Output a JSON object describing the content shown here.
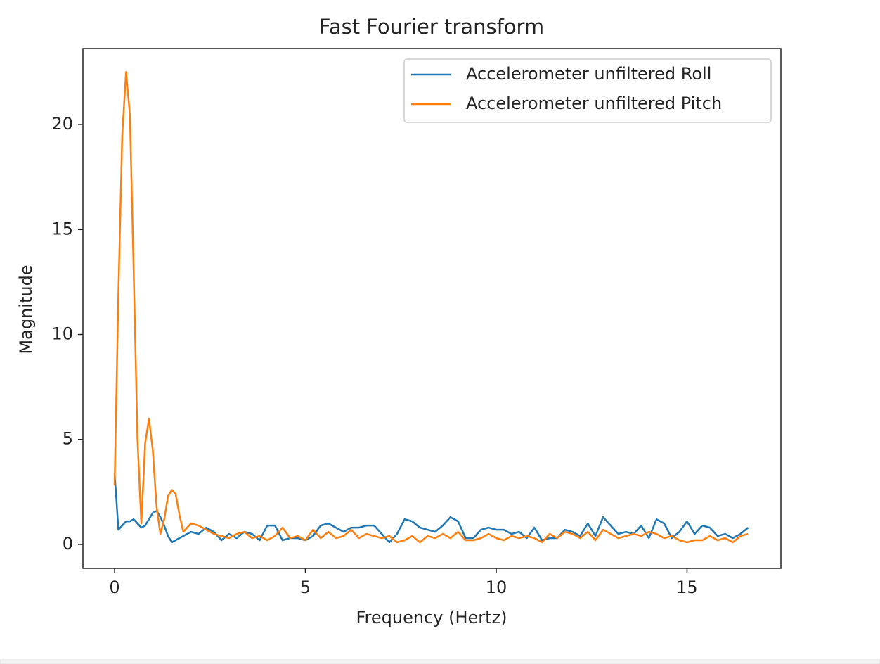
{
  "chart_data": {
    "type": "line",
    "title": "Fast Fourier transform",
    "x_label": "Frequency (Hertz)",
    "y_label": "Magnitude",
    "x": [
      0,
      0.1,
      0.2,
      0.3,
      0.4,
      0.5,
      0.6,
      0.7,
      0.8,
      0.9,
      1.0,
      1.1,
      1.2,
      1.3,
      1.4,
      1.5,
      1.6,
      1.7,
      1.8,
      1.9,
      2.0,
      2.2,
      2.4,
      2.6,
      2.8,
      3.0,
      3.2,
      3.4,
      3.6,
      3.8,
      4.0,
      4.2,
      4.4,
      4.6,
      4.8,
      5.0,
      5.2,
      5.4,
      5.6,
      5.8,
      6.0,
      6.2,
      6.4,
      6.6,
      6.8,
      7.0,
      7.2,
      7.4,
      7.6,
      7.8,
      8.0,
      8.2,
      8.4,
      8.6,
      8.8,
      9.0,
      9.2,
      9.4,
      9.6,
      9.8,
      10.0,
      10.2,
      10.4,
      10.6,
      10.8,
      11.0,
      11.2,
      11.4,
      11.6,
      11.8,
      12.0,
      12.2,
      12.4,
      12.6,
      12.8,
      13.0,
      13.2,
      13.4,
      13.6,
      13.8,
      14.0,
      14.2,
      14.4,
      14.6,
      14.8,
      15.0,
      15.2,
      15.4,
      15.6,
      15.8,
      16.0,
      16.2,
      16.4,
      16.6
    ],
    "series": [
      {
        "name": "Accelerometer unfiltered Roll",
        "color": "#1f77b4",
        "values": [
          3.4,
          0.7,
          0.9,
          1.1,
          1.1,
          1.2,
          1.0,
          0.8,
          0.9,
          1.2,
          1.5,
          1.6,
          1.3,
          0.9,
          0.4,
          0.1,
          0.2,
          0.3,
          0.4,
          0.5,
          0.6,
          0.5,
          0.8,
          0.6,
          0.2,
          0.5,
          0.3,
          0.6,
          0.5,
          0.2,
          0.9,
          0.9,
          0.2,
          0.3,
          0.3,
          0.2,
          0.4,
          0.9,
          1.0,
          0.8,
          0.6,
          0.8,
          0.8,
          0.9,
          0.9,
          0.5,
          0.1,
          0.5,
          1.2,
          1.1,
          0.8,
          0.7,
          0.6,
          0.9,
          1.3,
          1.1,
          0.3,
          0.3,
          0.7,
          0.8,
          0.7,
          0.7,
          0.5,
          0.6,
          0.3,
          0.8,
          0.2,
          0.3,
          0.3,
          0.7,
          0.6,
          0.4,
          1.0,
          0.4,
          1.3,
          0.9,
          0.5,
          0.6,
          0.5,
          0.9,
          0.3,
          1.2,
          1.0,
          0.3,
          0.6,
          1.1,
          0.5,
          0.9,
          0.8,
          0.4,
          0.5,
          0.3,
          0.5,
          0.8
        ]
      },
      {
        "name": "Accelerometer unfiltered Pitch",
        "color": "#ff7f0e",
        "values": [
          2.8,
          12,
          19.5,
          22.5,
          20.5,
          13,
          5,
          1,
          4.8,
          6,
          4.5,
          1.8,
          0.5,
          1.2,
          2.3,
          2.6,
          2.4,
          1.4,
          0.6,
          0.8,
          1.0,
          0.9,
          0.7,
          0.5,
          0.4,
          0.3,
          0.5,
          0.6,
          0.3,
          0.4,
          0.2,
          0.4,
          0.8,
          0.3,
          0.4,
          0.2,
          0.7,
          0.3,
          0.6,
          0.3,
          0.4,
          0.7,
          0.3,
          0.5,
          0.4,
          0.3,
          0.4,
          0.1,
          0.2,
          0.4,
          0.1,
          0.4,
          0.3,
          0.5,
          0.3,
          0.6,
          0.2,
          0.2,
          0.3,
          0.5,
          0.3,
          0.2,
          0.4,
          0.3,
          0.4,
          0.3,
          0.1,
          0.5,
          0.3,
          0.6,
          0.5,
          0.3,
          0.6,
          0.2,
          0.7,
          0.5,
          0.3,
          0.4,
          0.5,
          0.4,
          0.6,
          0.5,
          0.3,
          0.4,
          0.2,
          0.1,
          0.2,
          0.2,
          0.4,
          0.2,
          0.3,
          0.1,
          0.4,
          0.5
        ]
      }
    ],
    "xlim": [
      -0.83,
      17.46
    ],
    "ylim": [
      -1.14,
      23.62
    ],
    "xticks": [
      0,
      5,
      10,
      15
    ],
    "yticks": [
      0,
      5,
      10,
      15,
      20
    ],
    "legend": "upper right"
  }
}
